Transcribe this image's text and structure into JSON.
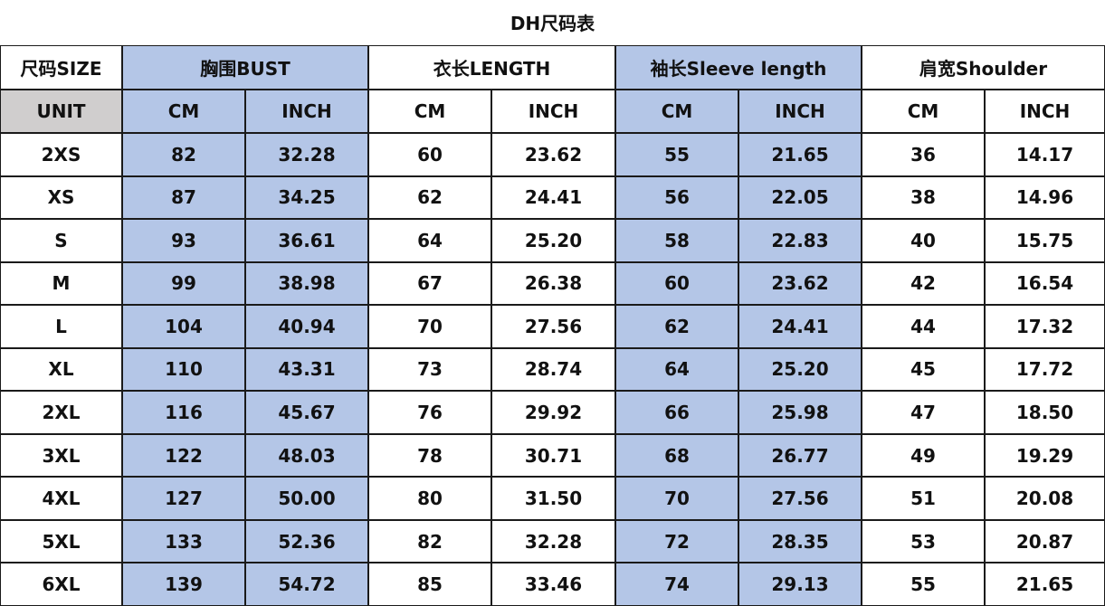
{
  "title": "DH尺码表",
  "header": {
    "size_label": "尺码SIZE",
    "groups": [
      "胸围BUST",
      "衣长LENGTH",
      "袖长Sleeve length",
      "肩宽Shoulder"
    ]
  },
  "units": {
    "label": "UNIT",
    "cells": [
      "CM",
      "INCH",
      "CM",
      "INCH",
      "CM",
      "INCH",
      "CM",
      "INCH"
    ]
  },
  "rows": [
    [
      "2XS",
      "82",
      "32.28",
      "60",
      "23.62",
      "55",
      "21.65",
      "36",
      "14.17"
    ],
    [
      "XS",
      "87",
      "34.25",
      "62",
      "24.41",
      "56",
      "22.05",
      "38",
      "14.96"
    ],
    [
      "S",
      "93",
      "36.61",
      "64",
      "25.20",
      "58",
      "22.83",
      "40",
      "15.75"
    ],
    [
      "M",
      "99",
      "38.98",
      "67",
      "26.38",
      "60",
      "23.62",
      "42",
      "16.54"
    ],
    [
      "L",
      "104",
      "40.94",
      "70",
      "27.56",
      "62",
      "24.41",
      "44",
      "17.32"
    ],
    [
      "XL",
      "110",
      "43.31",
      "73",
      "28.74",
      "64",
      "25.20",
      "45",
      "17.72"
    ],
    [
      "2XL",
      "116",
      "45.67",
      "76",
      "29.92",
      "66",
      "25.98",
      "47",
      "18.50"
    ],
    [
      "3XL",
      "122",
      "48.03",
      "78",
      "30.71",
      "68",
      "26.77",
      "49",
      "19.29"
    ],
    [
      "4XL",
      "127",
      "50.00",
      "80",
      "31.50",
      "70",
      "27.56",
      "51",
      "20.08"
    ],
    [
      "5XL",
      "133",
      "52.36",
      "82",
      "32.28",
      "72",
      "28.35",
      "53",
      "20.87"
    ],
    [
      "6XL",
      "139",
      "54.72",
      "85",
      "33.46",
      "74",
      "29.13",
      "55",
      "21.65"
    ]
  ]
}
